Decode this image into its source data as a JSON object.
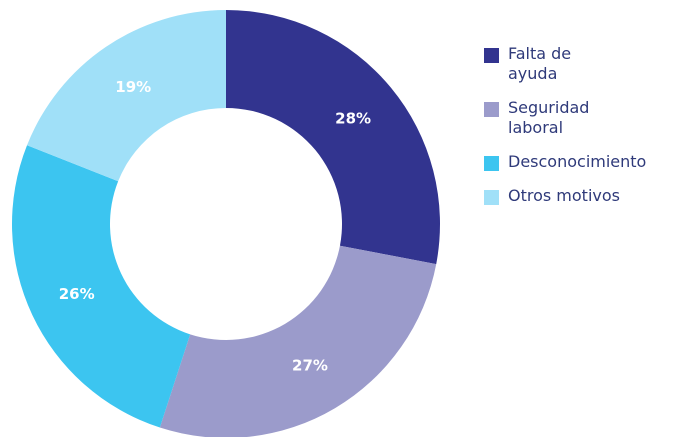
{
  "chart_data": {
    "type": "donut",
    "categories": [
      "Falta de ayuda",
      "Seguridad laboral",
      "Desconocimiento",
      "Otros motivos"
    ],
    "values": [
      28,
      27,
      26,
      19
    ],
    "value_labels": [
      "28%",
      "27%",
      "26%",
      "19%"
    ],
    "colors": [
      "#32348f",
      "#9b9bcb",
      "#3cc5f0",
      "#a0e0f8"
    ],
    "legend": "right"
  }
}
